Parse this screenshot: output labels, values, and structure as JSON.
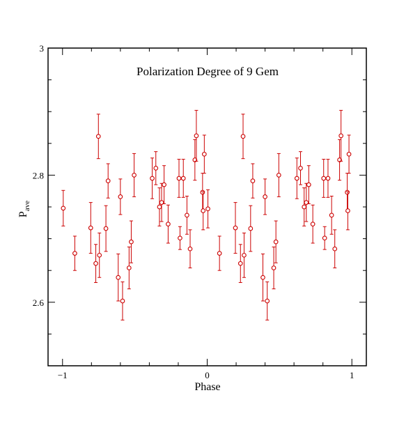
{
  "chart_data": {
    "type": "scatter",
    "title": "Polarization Degree of 9 Gem",
    "xlabel": "Phase",
    "ylabel": "P",
    "ylabel_sub": "ave",
    "xlim": [
      -1.1,
      1.1
    ],
    "ylim": [
      2.5,
      3.0
    ],
    "xticks": [
      -1,
      0,
      1
    ],
    "xtick_labels": [
      "−1",
      "0",
      "1"
    ],
    "yticks": [
      2.6,
      2.8,
      3.0
    ],
    "ytick_labels": [
      "2.6",
      "2.8",
      "3"
    ],
    "grid": false,
    "marker_color": "#cc0000",
    "series": [
      {
        "points": [
          {
            "x": -0.995,
            "y": 2.748,
            "err": 0.028
          },
          {
            "x": -0.915,
            "y": 2.677,
            "err": 0.027
          },
          {
            "x": -0.805,
            "y": 2.717,
            "err": 0.04
          },
          {
            "x": -0.77,
            "y": 2.661,
            "err": 0.03
          },
          {
            "x": -0.752,
            "y": 2.861,
            "err": 0.035
          },
          {
            "x": -0.745,
            "y": 2.674,
            "err": 0.035
          },
          {
            "x": -0.7,
            "y": 2.716,
            "err": 0.036
          },
          {
            "x": -0.685,
            "y": 2.791,
            "err": 0.027
          },
          {
            "x": -0.615,
            "y": 2.639,
            "err": 0.037
          },
          {
            "x": -0.6,
            "y": 2.766,
            "err": 0.028
          },
          {
            "x": -0.585,
            "y": 2.602,
            "err": 0.03
          },
          {
            "x": -0.54,
            "y": 2.654,
            "err": 0.033
          },
          {
            "x": -0.525,
            "y": 2.695,
            "err": 0.033
          },
          {
            "x": -0.505,
            "y": 2.8,
            "err": 0.034
          },
          {
            "x": -0.38,
            "y": 2.795,
            "err": 0.032
          },
          {
            "x": -0.355,
            "y": 2.811,
            "err": 0.026
          },
          {
            "x": -0.33,
            "y": 2.75,
            "err": 0.03
          },
          {
            "x": -0.315,
            "y": 2.757,
            "err": 0.03
          },
          {
            "x": -0.298,
            "y": 2.785,
            "err": 0.03
          },
          {
            "x": -0.27,
            "y": 2.723,
            "err": 0.03
          },
          {
            "x": -0.195,
            "y": 2.795,
            "err": 0.03
          },
          {
            "x": -0.188,
            "y": 2.701,
            "err": 0.018
          },
          {
            "x": -0.165,
            "y": 2.795,
            "err": 0.03
          },
          {
            "x": -0.14,
            "y": 2.737,
            "err": 0.03
          },
          {
            "x": -0.118,
            "y": 2.684,
            "err": 0.03
          },
          {
            "x": -0.085,
            "y": 2.824,
            "err": 0.032
          },
          {
            "x": -0.075,
            "y": 2.862,
            "err": 0.04
          },
          {
            "x": -0.032,
            "y": 2.773,
            "err": 0.03
          },
          {
            "x": -0.028,
            "y": 2.744,
            "err": 0.03
          },
          {
            "x": -0.02,
            "y": 2.833,
            "err": 0.03
          },
          {
            "x": 0.005,
            "y": 2.747,
            "err": 0.03
          },
          {
            "x": 0.085,
            "y": 2.677,
            "err": 0.027
          },
          {
            "x": 0.195,
            "y": 2.717,
            "err": 0.04
          },
          {
            "x": 0.23,
            "y": 2.661,
            "err": 0.03
          },
          {
            "x": 0.248,
            "y": 2.861,
            "err": 0.035
          },
          {
            "x": 0.255,
            "y": 2.674,
            "err": 0.035
          },
          {
            "x": 0.3,
            "y": 2.716,
            "err": 0.036
          },
          {
            "x": 0.315,
            "y": 2.791,
            "err": 0.027
          },
          {
            "x": 0.385,
            "y": 2.639,
            "err": 0.037
          },
          {
            "x": 0.4,
            "y": 2.766,
            "err": 0.028
          },
          {
            "x": 0.415,
            "y": 2.602,
            "err": 0.03
          },
          {
            "x": 0.46,
            "y": 2.654,
            "err": 0.033
          },
          {
            "x": 0.475,
            "y": 2.695,
            "err": 0.033
          },
          {
            "x": 0.495,
            "y": 2.8,
            "err": 0.034
          },
          {
            "x": 0.62,
            "y": 2.795,
            "err": 0.032
          },
          {
            "x": 0.645,
            "y": 2.811,
            "err": 0.026
          },
          {
            "x": 0.67,
            "y": 2.75,
            "err": 0.03
          },
          {
            "x": 0.685,
            "y": 2.757,
            "err": 0.03
          },
          {
            "x": 0.702,
            "y": 2.785,
            "err": 0.03
          },
          {
            "x": 0.73,
            "y": 2.723,
            "err": 0.03
          },
          {
            "x": 0.805,
            "y": 2.795,
            "err": 0.03
          },
          {
            "x": 0.812,
            "y": 2.701,
            "err": 0.018
          },
          {
            "x": 0.835,
            "y": 2.795,
            "err": 0.03
          },
          {
            "x": 0.86,
            "y": 2.737,
            "err": 0.03
          },
          {
            "x": 0.882,
            "y": 2.684,
            "err": 0.03
          },
          {
            "x": 0.915,
            "y": 2.824,
            "err": 0.032
          },
          {
            "x": 0.925,
            "y": 2.862,
            "err": 0.04
          },
          {
            "x": 0.968,
            "y": 2.773,
            "err": 0.03
          },
          {
            "x": 0.972,
            "y": 2.744,
            "err": 0.03
          },
          {
            "x": 0.98,
            "y": 2.833,
            "err": 0.03
          }
        ]
      }
    ]
  }
}
